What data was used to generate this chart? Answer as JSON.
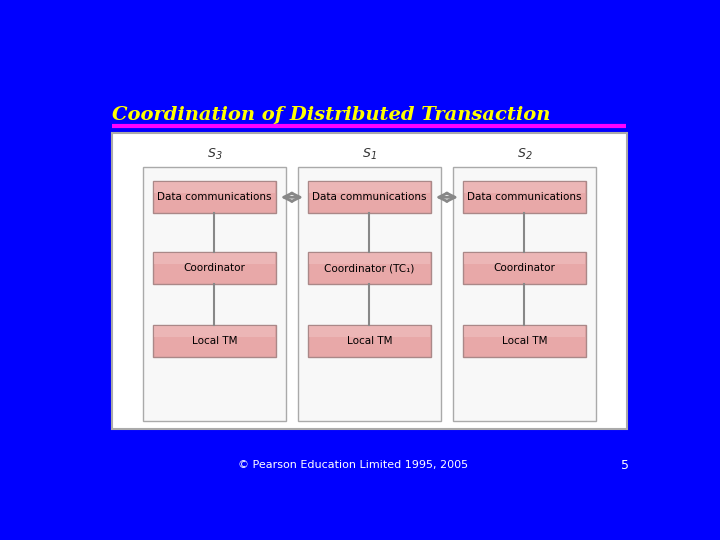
{
  "title": "Coordination of Distributed Transaction",
  "title_color": "#FFFF00",
  "title_fontsize": 14,
  "bg_color": "#0000FF",
  "underline_color": "#FF00FF",
  "footer_text": "© Pearson Education Limited 1995, 2005",
  "footer_color": "#FFFFFF",
  "page_number": "5",
  "page_number_color": "#FFFFFF",
  "diagram_bg": "#FFFFFF",
  "diagram_border": "#AAAAAA",
  "col_bg": "#F8F8F8",
  "col_border": "#AAAAAA",
  "box_fill_top": "#E8A0A0",
  "box_fill_bottom": "#F0C0C0",
  "box_border": "#AA8888",
  "box_text_color": "#000000",
  "arrow_color": "#888888",
  "line_color": "#888888",
  "servers": [
    "S",
    "S",
    "S"
  ],
  "server_subs": [
    "3",
    "1",
    "2"
  ],
  "server_label_color": "#333333",
  "boxes": [
    [
      "Data communications",
      "Coordinator",
      "Local TM"
    ],
    [
      "Data communications",
      "Coordinator (TC₁)",
      "Local TM"
    ],
    [
      "Data communications",
      "Coordinator",
      "Local TM"
    ]
  ]
}
